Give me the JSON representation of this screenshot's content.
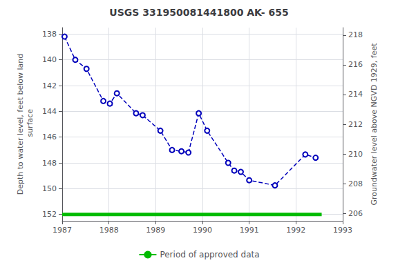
{
  "chart_data": {
    "type": "line",
    "title": "USGS 331950081441800 AK- 655",
    "ylabel": "Depth to water level, feet below land\n surface",
    "y2label": "Groundwater level above NGVD 1929, feet",
    "xlim": [
      1987,
      1993
    ],
    "xticks": [
      1987,
      1988,
      1989,
      1990,
      1991,
      1992,
      1993
    ],
    "ylim": [
      152.5,
      137.5
    ],
    "yticks": [
      138,
      140,
      142,
      144,
      146,
      148,
      150,
      152
    ],
    "y2lim": [
      205.5,
      218.5
    ],
    "y2ticks": [
      218,
      216,
      214,
      212,
      210,
      208,
      206
    ],
    "grid": true,
    "legend": "bottom",
    "series": [
      {
        "color": "#0000bb",
        "line_style": "dashed",
        "marker": "circle",
        "x": [
          1987.05,
          1987.28,
          1987.52,
          1987.88,
          1988.02,
          1988.17,
          1988.58,
          1988.72,
          1989.1,
          1989.35,
          1989.55,
          1989.7,
          1989.92,
          1990.1,
          1990.55,
          1990.68,
          1990.82,
          1991.0,
          1991.55,
          1992.2,
          1992.42
        ],
        "values": [
          138.2,
          140.0,
          140.7,
          143.2,
          143.4,
          142.6,
          144.15,
          144.3,
          145.5,
          147.0,
          147.1,
          147.2,
          144.15,
          145.5,
          148.0,
          148.6,
          148.7,
          149.35,
          149.75,
          147.35,
          147.6
        ]
      },
      {
        "name": "Period of approved data",
        "color": "#00bb00",
        "line_style": "solid",
        "marker": "none",
        "x": [
          1987.0,
          1992.55
        ],
        "values": [
          152.0,
          152.0
        ]
      }
    ]
  }
}
